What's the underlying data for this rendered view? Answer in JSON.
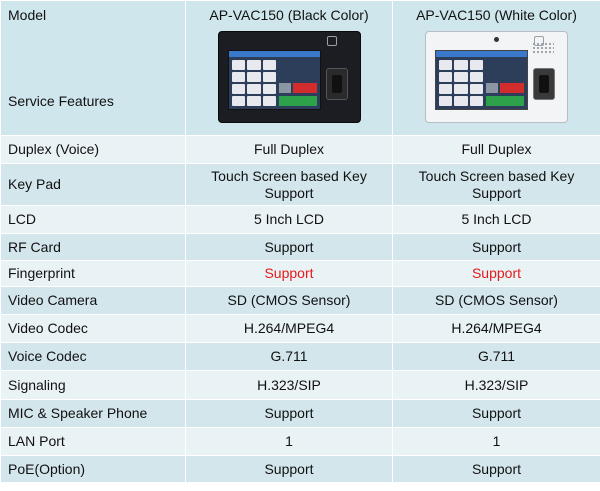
{
  "header": {
    "model_label": "Model",
    "service_label": "Service Features",
    "col1_title": "AP-VAC150 (Black Color)",
    "col2_title": "AP-VAC150 (White Color)"
  },
  "rows": [
    {
      "feature": "Duplex (Voice)",
      "black": "Full Duplex",
      "white": "Full Duplex"
    },
    {
      "feature": "Key Pad",
      "black": "Touch Screen based  Key Support",
      "white": "Touch Screen based  Key Support"
    },
    {
      "feature": "LCD",
      "black": "5  Inch LCD",
      "white": "5  Inch LCD"
    },
    {
      "feature": "RF Card",
      "black": "Support",
      "white": "Support"
    },
    {
      "feature": "Fingerprint",
      "black": "Support",
      "white": "Support"
    },
    {
      "feature": "Video Camera",
      "black": "SD (CMOS Sensor)",
      "white": "SD (CMOS Sensor)"
    },
    {
      "feature": "Video Codec",
      "black": "H.264/MPEG4",
      "white": "H.264/MPEG4"
    },
    {
      "feature": "Voice Codec",
      "black": "G.711",
      "white": "G.711"
    },
    {
      "feature": "Signaling",
      "black": "H.323/SIP",
      "white": "H.323/SIP"
    },
    {
      "feature": "MIC & Speaker Phone",
      "black": "Support",
      "white": "Support"
    },
    {
      "feature": "LAN Port",
      "black": "1",
      "white": "1"
    },
    {
      "feature": "PoE(Option)",
      "black": "Support",
      "white": "Support"
    }
  ],
  "colors": {
    "header_bg": "#cfe6ec",
    "row_light": "#e9f2f5",
    "row_dark": "#d3e6ec",
    "highlight_red": "#e31b1b"
  }
}
